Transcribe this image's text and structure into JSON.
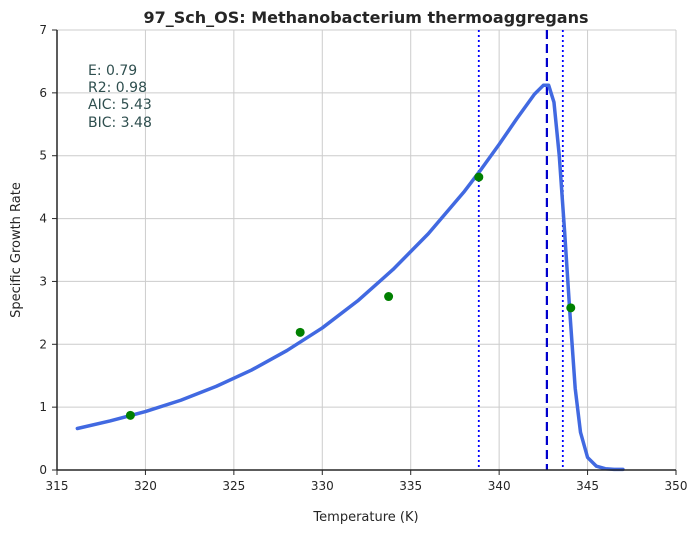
{
  "chart_data": {
    "type": "line",
    "title": "97_Sch_OS: Methanobacterium thermoaggregans",
    "xlabel": "Temperature (K)",
    "ylabel": "Specific Growth Rate",
    "xlim": [
      315,
      350
    ],
    "ylim": [
      0,
      7
    ],
    "xticks": [
      315,
      320,
      325,
      330,
      335,
      340,
      345,
      350
    ],
    "yticks": [
      0,
      1,
      2,
      3,
      4,
      5,
      6,
      7
    ],
    "xtick_labels": [
      "315",
      "320",
      "325",
      "330",
      "335",
      "340",
      "345",
      "350"
    ],
    "ytick_labels": [
      "0",
      "1",
      "2",
      "3",
      "4",
      "5",
      "6",
      "7"
    ],
    "grid": true,
    "annotation_lines": [
      "E:  0.79",
      "R2:  0.98",
      "AIC: 5.43",
      "BIC: 3.48"
    ],
    "points": {
      "x": [
        319.15,
        328.75,
        333.75,
        338.85,
        344.05
      ],
      "y": [
        0.87,
        2.19,
        2.76,
        4.66,
        2.58
      ],
      "color": "#008000"
    },
    "fit_curve": {
      "x": [
        316.15,
        318,
        320,
        322,
        324,
        326,
        328,
        330,
        332,
        334,
        336,
        338,
        339,
        340,
        341,
        342,
        342.5,
        342.8,
        343.1,
        343.4,
        343.7,
        344.0,
        344.3,
        344.6,
        345.0,
        345.5,
        346.0,
        346.5,
        347.0
      ],
      "y": [
        0.66,
        0.78,
        0.93,
        1.11,
        1.33,
        1.59,
        1.9,
        2.26,
        2.69,
        3.19,
        3.76,
        4.42,
        4.79,
        5.18,
        5.59,
        5.98,
        6.12,
        6.12,
        5.85,
        5.0,
        3.8,
        2.5,
        1.3,
        0.6,
        0.2,
        0.06,
        0.02,
        0.01,
        0.01
      ],
      "color": "#4169e1"
    },
    "vlines": [
      {
        "x": 338.85,
        "style": "dotted",
        "color": "#0000ff"
      },
      {
        "x": 342.7,
        "style": "dashed",
        "color": "#0000cd"
      },
      {
        "x": 343.6,
        "style": "dotted",
        "color": "#0000ff"
      }
    ]
  }
}
